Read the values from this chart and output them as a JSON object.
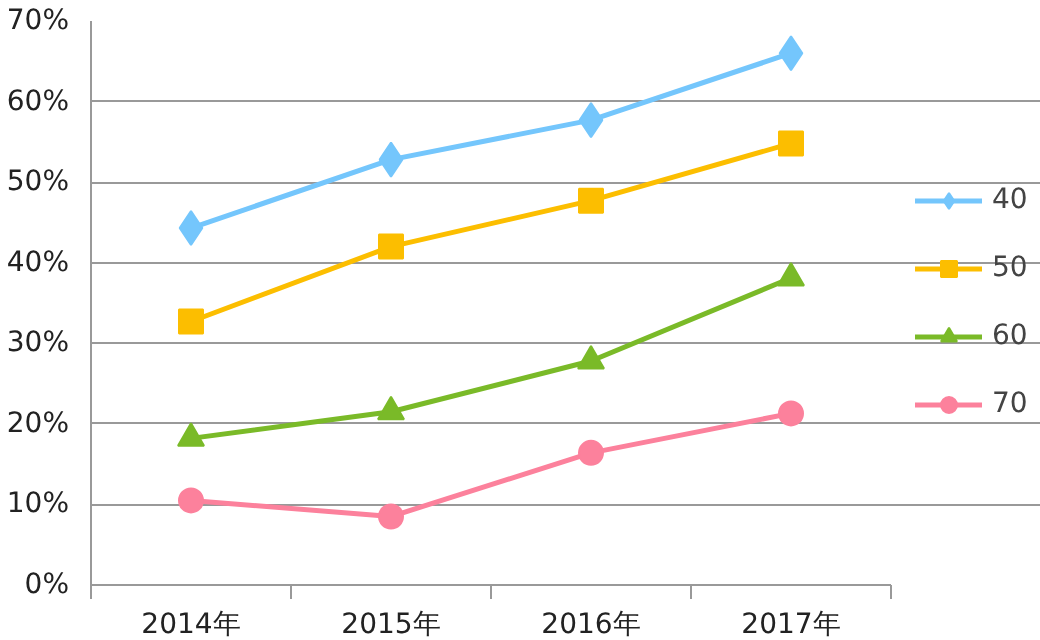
{
  "chart_data": {
    "type": "line",
    "categories": [
      "2014年",
      "2015年",
      "2016年",
      "2017年"
    ],
    "ylim": [
      0,
      70
    ],
    "yticks": [
      {
        "value": 0,
        "label": "0%"
      },
      {
        "value": 10,
        "label": "10%"
      },
      {
        "value": 20,
        "label": "20%"
      },
      {
        "value": 30,
        "label": "30%"
      },
      {
        "value": 40,
        "label": "40%"
      },
      {
        "value": 50,
        "label": "50%"
      },
      {
        "value": 60,
        "label": "60%"
      },
      {
        "value": 70,
        "label": "70%"
      }
    ],
    "grid": "y",
    "legend": "right",
    "line_style": "solid",
    "series": [
      {
        "name": "40",
        "color": "#74c6fc",
        "marker": "diamond",
        "values": [
          44.3,
          52.8,
          57.7,
          66.0
        ]
      },
      {
        "name": "50",
        "color": "#fcbe00",
        "marker": "square",
        "values": [
          32.7,
          42.0,
          47.7,
          54.8
        ]
      },
      {
        "name": "60",
        "color": "#7aba28",
        "marker": "triangle",
        "values": [
          18.2,
          21.5,
          27.8,
          38.1
        ]
      },
      {
        "name": "70",
        "color": "#fc819c",
        "marker": "circle",
        "values": [
          10.5,
          8.5,
          16.4,
          21.3
        ]
      }
    ]
  }
}
